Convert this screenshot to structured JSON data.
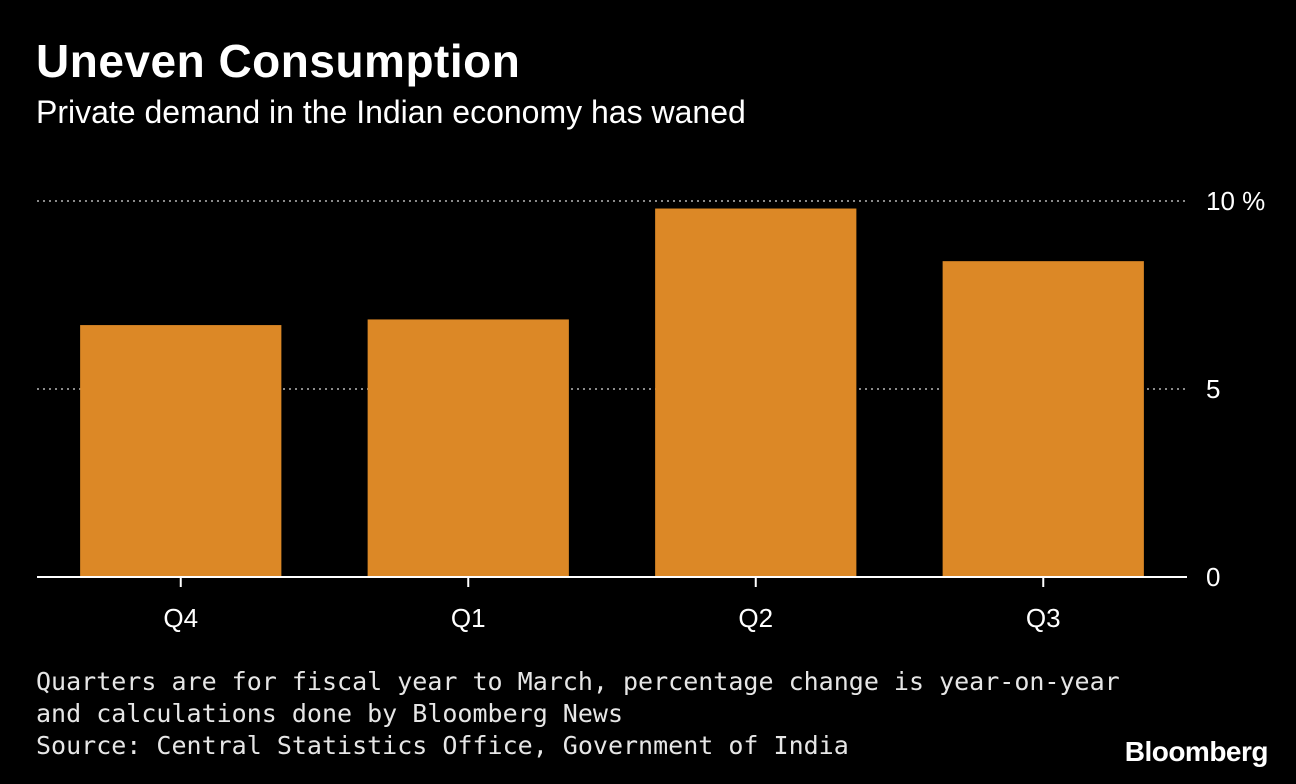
{
  "header": {
    "title": "Uneven Consumption",
    "subtitle": "Private demand in the Indian economy has waned"
  },
  "footer": {
    "note_line1": "Quarters are for fiscal year to March, percentage change is year-on-year",
    "note_line2": "and calculations done by Bloomberg News",
    "source": "Source: Central Statistics Office, Government of India",
    "brand": "Bloomberg"
  },
  "colors": {
    "background": "#000000",
    "bar": "#dc8826",
    "grid": "#8a8a8a",
    "axis": "#ffffff",
    "text": "#ffffff"
  },
  "chart_data": {
    "type": "bar",
    "title": "Uneven Consumption",
    "subtitle": "Private demand in the Indian economy has waned",
    "categories": [
      "Q4",
      "Q1",
      "Q2",
      "Q3"
    ],
    "values": [
      6.7,
      6.85,
      9.8,
      8.4
    ],
    "ylim": [
      0,
      10
    ],
    "yticks": [
      0,
      5,
      10
    ],
    "ytick_labels": [
      "0",
      "5",
      "10 %"
    ],
    "y_axis_position": "right",
    "grid": true,
    "legend": "none"
  }
}
